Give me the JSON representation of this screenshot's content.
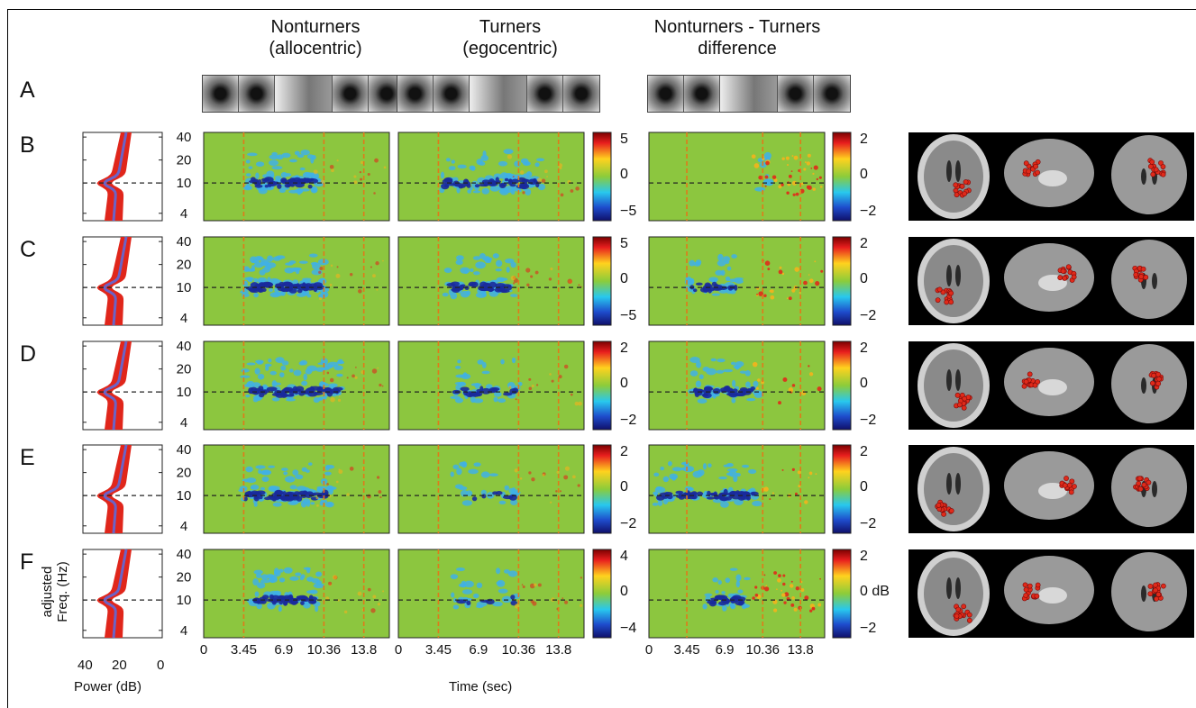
{
  "panel_letters": [
    "A",
    "B",
    "C",
    "D",
    "E",
    "F"
  ],
  "columns": [
    {
      "title_line1": "Nonturners",
      "title_line2": "(allocentric)"
    },
    {
      "title_line1": "Turners",
      "title_line2": "(egocentric)"
    },
    {
      "title_line1": "Nonturners - Turners",
      "title_line2": "difference"
    }
  ],
  "freq_ticks": [
    "40",
    "20",
    "10",
    "4"
  ],
  "power_ticks": [
    "40",
    "20",
    "0"
  ],
  "time_ticks": [
    "0",
    "3.45",
    "6.9",
    "10.36",
    "13.8"
  ],
  "power_xlabel": "Power (dB)",
  "time_xlabel": "Time (sec)",
  "ylabel_line1": "adjusted",
  "ylabel_line2": "Freq. (Hz)",
  "colorbar_unit": "dB",
  "colorbar_ticks": [
    {
      "a": [
        "5",
        "0",
        "−5"
      ],
      "b": [
        "2",
        "0",
        "−2"
      ]
    },
    {
      "a": [
        "5",
        "0",
        "−5"
      ],
      "b": [
        "2",
        "0",
        "−2"
      ]
    },
    {
      "a": [
        "2",
        "0",
        "−2"
      ],
      "b": [
        "2",
        "0",
        "−2"
      ]
    },
    {
      "a": [
        "2",
        "0",
        "−2"
      ],
      "b": [
        "2",
        "0",
        "−2"
      ]
    },
    {
      "a": [
        "4",
        "0",
        "−4"
      ],
      "b": [
        "2",
        "0 dB",
        "−2"
      ]
    }
  ],
  "colors": {
    "bg_green": "#8cc63f",
    "blue_weak": "#3fb0e6",
    "blue_strong": "#1a2a9c",
    "red": "#e02a1a",
    "spectrum_red": "#e0261b",
    "spectrum_blue": "#6b63c6",
    "marker_line": "#e07a1a"
  },
  "chart_data": {
    "type": "heatmap",
    "description_free": true,
    "x": {
      "label": "Time (sec)",
      "markers_sec": [
        3.45,
        10.36,
        13.8
      ],
      "range": [
        0,
        16
      ]
    },
    "y": {
      "label": "adjusted Freq. (Hz)",
      "ticks": [
        4,
        10,
        20,
        40
      ],
      "scale": "log"
    },
    "rows": [
      "B",
      "C",
      "D",
      "E",
      "F"
    ]
  }
}
